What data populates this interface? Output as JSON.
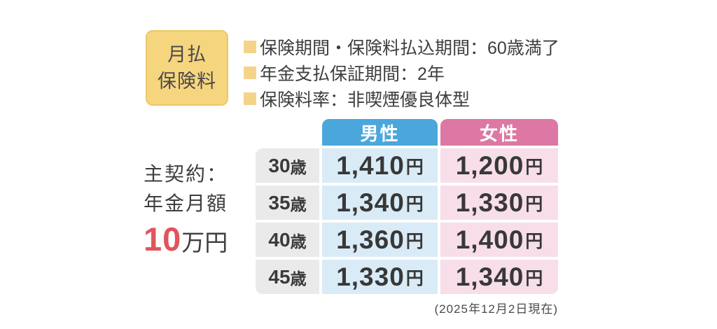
{
  "badge": {
    "line1": "月払",
    "line2": "保険料"
  },
  "conditions": {
    "items": [
      "保険期間・保険料払込期間：60歳満了",
      "年金支払保証期間：2年",
      "保険料率：非喫煙優良体型"
    ]
  },
  "contract": {
    "line1": "主契約：",
    "line2": "年金月額",
    "amount_number": "10",
    "amount_unit": "万円"
  },
  "table": {
    "header_male": "男性",
    "header_female": "女性",
    "age_suffix": "歳",
    "yen_suffix": "円",
    "rows": [
      {
        "age": "30",
        "male": "1,410",
        "female": "1,200"
      },
      {
        "age": "35",
        "male": "1,340",
        "female": "1,330"
      },
      {
        "age": "40",
        "male": "1,360",
        "female": "1,400"
      },
      {
        "age": "45",
        "male": "1,330",
        "female": "1,340"
      }
    ]
  },
  "footnote": "(2025年12月2日現在)",
  "colors": {
    "badge_yellow": "#f6d57f",
    "badge_border": "#edc766",
    "bullet_yellow": "#f4d488",
    "male_header_blue": "#4ba7db",
    "female_header_pink": "#dc78a3",
    "male_cell_blue": "#d9ebf6",
    "female_cell_pink": "#f7dee9",
    "age_cell_gray": "#eaeaea",
    "amount_red": "#e1545f",
    "text_dark": "#3e3e3e"
  },
  "chart_data": {
    "type": "table",
    "title": "月払保険料",
    "conditions": [
      "保険期間・保険料払込期間：60歳満了",
      "年金支払保証期間：2年",
      "保険料率：非喫煙優良体型"
    ],
    "contract_note": "主契約：年金月額10万円",
    "columns": [
      "",
      "男性",
      "女性"
    ],
    "rows": [
      [
        "30歳",
        "1,410円",
        "1,200円"
      ],
      [
        "35歳",
        "1,340円",
        "1,330円"
      ],
      [
        "40歳",
        "1,360円",
        "1,400円"
      ],
      [
        "45歳",
        "1,330円",
        "1,340円"
      ]
    ],
    "as_of": "(2025年12月2日現在)"
  }
}
